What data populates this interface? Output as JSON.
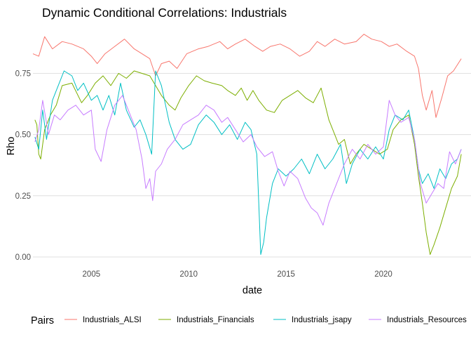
{
  "chart_data": {
    "type": "line",
    "title": "Dynamic Conditional Correlations: Industrials",
    "xlabel": "date",
    "ylabel": "Rho",
    "xlim": [
      2002.0,
      2024.5
    ],
    "ylim": [
      0.0,
      0.9
    ],
    "x_ticks": [
      2005,
      2010,
      2015,
      2020
    ],
    "y_ticks": [
      0.0,
      0.25,
      0.5,
      0.75
    ],
    "y_tick_labels": [
      "0.00",
      "0.25",
      "0.50",
      "0.75"
    ],
    "grid": "horizontal major",
    "legend": {
      "title": "Pairs",
      "position": "bottom"
    },
    "series": [
      {
        "name": "Industrials_ALSI",
        "color": "#F8766D",
        "points": [
          [
            2002.0,
            0.83
          ],
          [
            2002.3,
            0.82
          ],
          [
            2002.6,
            0.9
          ],
          [
            2003.0,
            0.85
          ],
          [
            2003.5,
            0.88
          ],
          [
            2004.0,
            0.87
          ],
          [
            2004.6,
            0.85
          ],
          [
            2005.0,
            0.82
          ],
          [
            2005.3,
            0.79
          ],
          [
            2005.7,
            0.83
          ],
          [
            2006.2,
            0.86
          ],
          [
            2006.7,
            0.89
          ],
          [
            2007.2,
            0.85
          ],
          [
            2007.6,
            0.83
          ],
          [
            2008.0,
            0.81
          ],
          [
            2008.3,
            0.74
          ],
          [
            2008.6,
            0.79
          ],
          [
            2009.0,
            0.8
          ],
          [
            2009.4,
            0.77
          ],
          [
            2009.9,
            0.83
          ],
          [
            2010.5,
            0.85
          ],
          [
            2011.0,
            0.86
          ],
          [
            2011.6,
            0.88
          ],
          [
            2012.0,
            0.85
          ],
          [
            2012.4,
            0.87
          ],
          [
            2012.9,
            0.89
          ],
          [
            2013.4,
            0.86
          ],
          [
            2013.8,
            0.84
          ],
          [
            2014.2,
            0.86
          ],
          [
            2014.7,
            0.87
          ],
          [
            2015.2,
            0.85
          ],
          [
            2015.7,
            0.82
          ],
          [
            2016.2,
            0.84
          ],
          [
            2016.6,
            0.88
          ],
          [
            2017.0,
            0.86
          ],
          [
            2017.5,
            0.89
          ],
          [
            2018.0,
            0.87
          ],
          [
            2018.6,
            0.88
          ],
          [
            2019.0,
            0.91
          ],
          [
            2019.4,
            0.89
          ],
          [
            2019.9,
            0.88
          ],
          [
            2020.3,
            0.86
          ],
          [
            2020.7,
            0.87
          ],
          [
            2021.2,
            0.84
          ],
          [
            2021.6,
            0.82
          ],
          [
            2021.8,
            0.77
          ],
          [
            2022.0,
            0.66
          ],
          [
            2022.2,
            0.6
          ],
          [
            2022.5,
            0.68
          ],
          [
            2022.7,
            0.57
          ],
          [
            2023.0,
            0.65
          ],
          [
            2023.3,
            0.74
          ],
          [
            2023.6,
            0.76
          ],
          [
            2024.0,
            0.81
          ]
        ]
      },
      {
        "name": "Industrials_Financials",
        "color": "#7CAE00",
        "points": [
          [
            2002.1,
            0.56
          ],
          [
            2002.2,
            0.54
          ],
          [
            2002.3,
            0.42
          ],
          [
            2002.4,
            0.4
          ],
          [
            2002.6,
            0.52
          ],
          [
            2002.9,
            0.58
          ],
          [
            2003.2,
            0.62
          ],
          [
            2003.5,
            0.7
          ],
          [
            2004.0,
            0.71
          ],
          [
            2004.5,
            0.63
          ],
          [
            2004.8,
            0.66
          ],
          [
            2005.2,
            0.71
          ],
          [
            2005.6,
            0.74
          ],
          [
            2006.0,
            0.7
          ],
          [
            2006.4,
            0.75
          ],
          [
            2006.8,
            0.73
          ],
          [
            2007.2,
            0.76
          ],
          [
            2007.6,
            0.75
          ],
          [
            2008.0,
            0.74
          ],
          [
            2008.3,
            0.7
          ],
          [
            2008.6,
            0.66
          ],
          [
            2009.0,
            0.62
          ],
          [
            2009.3,
            0.6
          ],
          [
            2009.6,
            0.65
          ],
          [
            2010.0,
            0.7
          ],
          [
            2010.4,
            0.74
          ],
          [
            2010.8,
            0.72
          ],
          [
            2011.2,
            0.71
          ],
          [
            2011.7,
            0.7
          ],
          [
            2012.0,
            0.68
          ],
          [
            2012.4,
            0.66
          ],
          [
            2012.7,
            0.69
          ],
          [
            2013.0,
            0.64
          ],
          [
            2013.3,
            0.68
          ],
          [
            2013.6,
            0.64
          ],
          [
            2014.0,
            0.6
          ],
          [
            2014.4,
            0.59
          ],
          [
            2014.8,
            0.64
          ],
          [
            2015.2,
            0.66
          ],
          [
            2015.6,
            0.68
          ],
          [
            2016.0,
            0.65
          ],
          [
            2016.4,
            0.63
          ],
          [
            2016.8,
            0.69
          ],
          [
            2017.2,
            0.56
          ],
          [
            2017.5,
            0.5
          ],
          [
            2017.7,
            0.46
          ],
          [
            2018.0,
            0.48
          ],
          [
            2018.3,
            0.38
          ],
          [
            2018.6,
            0.42
          ],
          [
            2019.0,
            0.46
          ],
          [
            2019.4,
            0.44
          ],
          [
            2019.8,
            0.42
          ],
          [
            2020.2,
            0.44
          ],
          [
            2020.5,
            0.52
          ],
          [
            2020.9,
            0.56
          ],
          [
            2021.3,
            0.58
          ],
          [
            2021.6,
            0.46
          ],
          [
            2021.8,
            0.33
          ],
          [
            2022.0,
            0.22
          ],
          [
            2022.2,
            0.1
          ],
          [
            2022.4,
            0.01
          ],
          [
            2022.6,
            0.05
          ],
          [
            2022.9,
            0.12
          ],
          [
            2023.2,
            0.2
          ],
          [
            2023.5,
            0.28
          ],
          [
            2023.8,
            0.33
          ],
          [
            2024.0,
            0.42
          ]
        ]
      },
      {
        "name": "Industrials_jsapy",
        "color": "#00BFC4",
        "points": [
          [
            2002.1,
            0.49
          ],
          [
            2002.3,
            0.44
          ],
          [
            2002.5,
            0.6
          ],
          [
            2002.7,
            0.48
          ],
          [
            2003.0,
            0.64
          ],
          [
            2003.3,
            0.7
          ],
          [
            2003.6,
            0.76
          ],
          [
            2004.0,
            0.74
          ],
          [
            2004.3,
            0.68
          ],
          [
            2004.6,
            0.71
          ],
          [
            2005.0,
            0.64
          ],
          [
            2005.3,
            0.66
          ],
          [
            2005.6,
            0.6
          ],
          [
            2005.9,
            0.66
          ],
          [
            2006.2,
            0.58
          ],
          [
            2006.5,
            0.71
          ],
          [
            2006.8,
            0.6
          ],
          [
            2007.2,
            0.53
          ],
          [
            2007.5,
            0.56
          ],
          [
            2007.8,
            0.5
          ],
          [
            2008.1,
            0.42
          ],
          [
            2008.3,
            0.76
          ],
          [
            2008.6,
            0.7
          ],
          [
            2009.0,
            0.55
          ],
          [
            2009.3,
            0.48
          ],
          [
            2009.7,
            0.44
          ],
          [
            2010.1,
            0.46
          ],
          [
            2010.5,
            0.54
          ],
          [
            2010.9,
            0.58
          ],
          [
            2011.3,
            0.55
          ],
          [
            2011.7,
            0.5
          ],
          [
            2012.1,
            0.54
          ],
          [
            2012.5,
            0.48
          ],
          [
            2012.9,
            0.55
          ],
          [
            2013.2,
            0.52
          ],
          [
            2013.5,
            0.42
          ],
          [
            2013.6,
            0.22
          ],
          [
            2013.7,
            0.01
          ],
          [
            2013.85,
            0.06
          ],
          [
            2014.0,
            0.16
          ],
          [
            2014.3,
            0.3
          ],
          [
            2014.6,
            0.36
          ],
          [
            2015.0,
            0.33
          ],
          [
            2015.4,
            0.36
          ],
          [
            2015.8,
            0.4
          ],
          [
            2016.2,
            0.34
          ],
          [
            2016.6,
            0.42
          ],
          [
            2017.0,
            0.36
          ],
          [
            2017.4,
            0.4
          ],
          [
            2017.8,
            0.46
          ],
          [
            2018.1,
            0.3
          ],
          [
            2018.4,
            0.38
          ],
          [
            2018.8,
            0.44
          ],
          [
            2019.2,
            0.4
          ],
          [
            2019.6,
            0.45
          ],
          [
            2020.0,
            0.4
          ],
          [
            2020.3,
            0.52
          ],
          [
            2020.6,
            0.58
          ],
          [
            2021.0,
            0.56
          ],
          [
            2021.3,
            0.6
          ],
          [
            2021.6,
            0.48
          ],
          [
            2021.8,
            0.36
          ],
          [
            2022.0,
            0.3
          ],
          [
            2022.3,
            0.34
          ],
          [
            2022.6,
            0.28
          ],
          [
            2022.9,
            0.36
          ],
          [
            2023.2,
            0.32
          ],
          [
            2023.5,
            0.38
          ],
          [
            2023.8,
            0.4
          ],
          [
            2024.0,
            0.44
          ]
        ]
      },
      {
        "name": "Industrials_Resources",
        "color": "#C77CFF",
        "points": [
          [
            2002.1,
            0.47
          ],
          [
            2002.3,
            0.52
          ],
          [
            2002.5,
            0.64
          ],
          [
            2002.8,
            0.5
          ],
          [
            2003.1,
            0.58
          ],
          [
            2003.4,
            0.56
          ],
          [
            2003.8,
            0.6
          ],
          [
            2004.2,
            0.62
          ],
          [
            2004.6,
            0.58
          ],
          [
            2005.0,
            0.6
          ],
          [
            2005.2,
            0.44
          ],
          [
            2005.5,
            0.39
          ],
          [
            2005.8,
            0.52
          ],
          [
            2006.2,
            0.62
          ],
          [
            2006.6,
            0.66
          ],
          [
            2007.0,
            0.58
          ],
          [
            2007.3,
            0.52
          ],
          [
            2007.6,
            0.4
          ],
          [
            2007.8,
            0.28
          ],
          [
            2008.0,
            0.32
          ],
          [
            2008.15,
            0.23
          ],
          [
            2008.3,
            0.35
          ],
          [
            2008.6,
            0.38
          ],
          [
            2008.9,
            0.44
          ],
          [
            2009.3,
            0.48
          ],
          [
            2009.7,
            0.54
          ],
          [
            2010.1,
            0.56
          ],
          [
            2010.5,
            0.58
          ],
          [
            2010.9,
            0.62
          ],
          [
            2011.3,
            0.6
          ],
          [
            2011.7,
            0.55
          ],
          [
            2012.0,
            0.57
          ],
          [
            2012.4,
            0.52
          ],
          [
            2012.8,
            0.47
          ],
          [
            2013.2,
            0.5
          ],
          [
            2013.5,
            0.45
          ],
          [
            2013.9,
            0.41
          ],
          [
            2014.3,
            0.43
          ],
          [
            2014.6,
            0.35
          ],
          [
            2014.9,
            0.29
          ],
          [
            2015.2,
            0.35
          ],
          [
            2015.6,
            0.32
          ],
          [
            2016.0,
            0.24
          ],
          [
            2016.3,
            0.2
          ],
          [
            2016.6,
            0.18
          ],
          [
            2016.9,
            0.13
          ],
          [
            2017.2,
            0.22
          ],
          [
            2017.6,
            0.3
          ],
          [
            2018.0,
            0.38
          ],
          [
            2018.4,
            0.44
          ],
          [
            2018.8,
            0.4
          ],
          [
            2019.2,
            0.46
          ],
          [
            2019.6,
            0.42
          ],
          [
            2020.0,
            0.45
          ],
          [
            2020.3,
            0.64
          ],
          [
            2020.6,
            0.58
          ],
          [
            2020.9,
            0.55
          ],
          [
            2021.3,
            0.57
          ],
          [
            2021.6,
            0.48
          ],
          [
            2021.9,
            0.3
          ],
          [
            2022.2,
            0.22
          ],
          [
            2022.5,
            0.26
          ],
          [
            2022.8,
            0.3
          ],
          [
            2023.1,
            0.28
          ],
          [
            2023.4,
            0.43
          ],
          [
            2023.7,
            0.38
          ],
          [
            2024.0,
            0.44
          ]
        ]
      }
    ]
  }
}
